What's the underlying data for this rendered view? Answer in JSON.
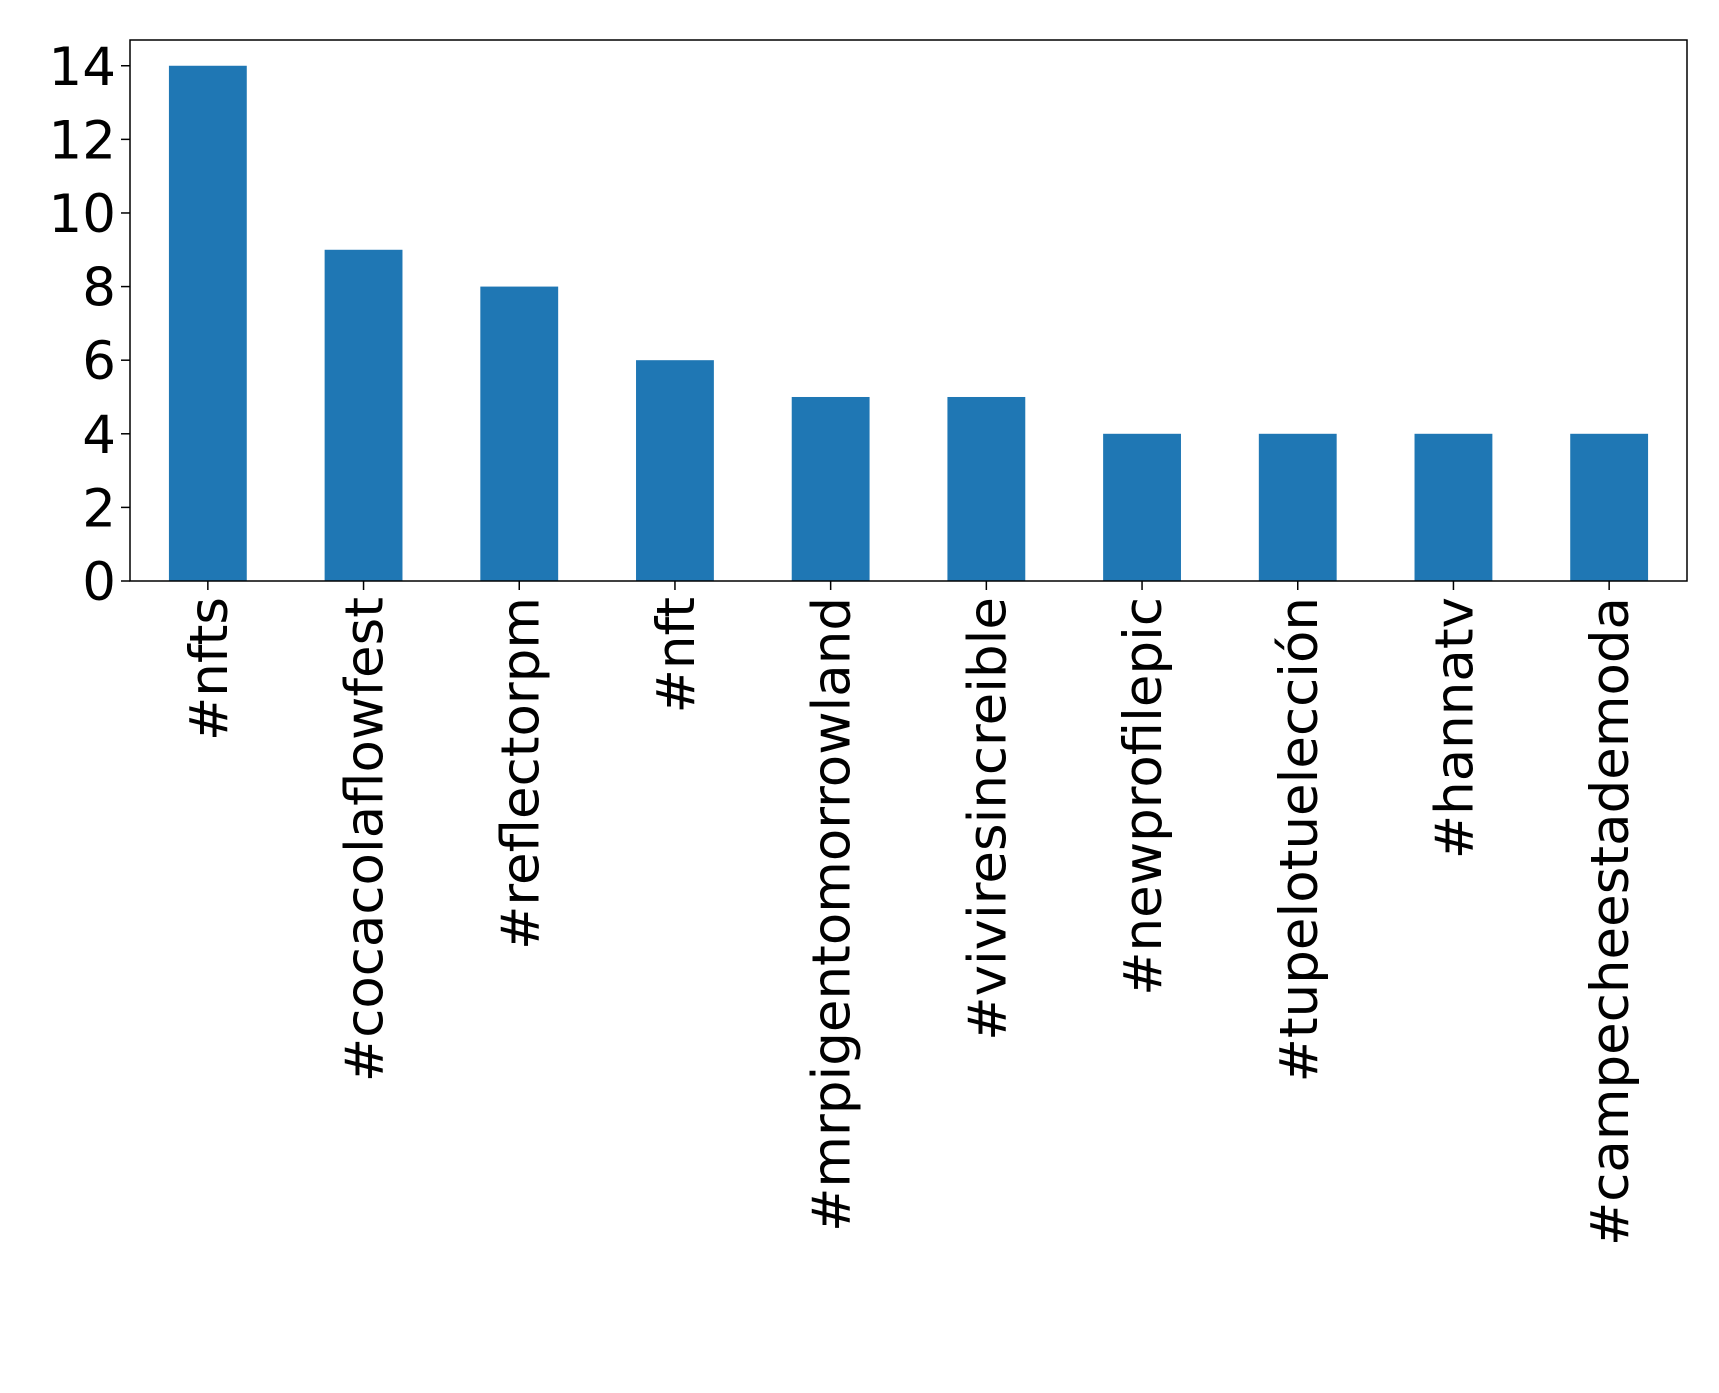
{
  "chart_data": {
    "type": "bar",
    "categories": [
      "#nfts",
      "#cocacolaflowfest",
      "#reflectorpm",
      "#nft",
      "#mrpigentomorrowland",
      "#viviresincreible",
      "#newprofilepic",
      "#tupelotuelección",
      "#hannatv",
      "#campecheestademoda"
    ],
    "values": [
      14,
      9,
      8,
      6,
      5,
      5,
      4,
      4,
      4,
      4
    ],
    "color": "#1f77b4",
    "ylim": [
      0,
      14.7
    ],
    "yticks": [
      0,
      2,
      4,
      6,
      8,
      10,
      12,
      14
    ],
    "grid": false
  }
}
